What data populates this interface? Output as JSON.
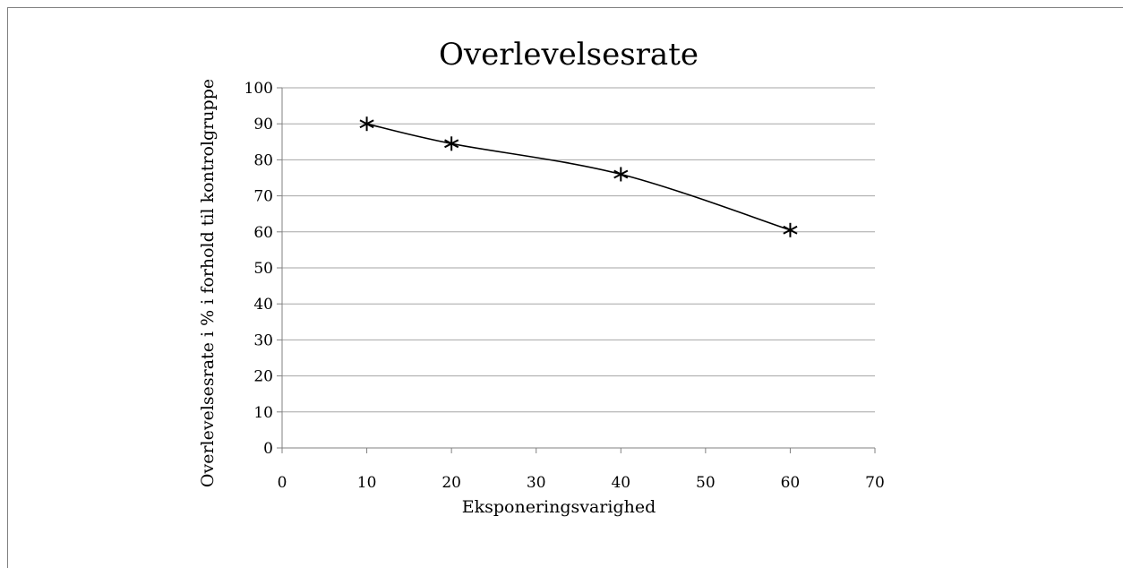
{
  "chart_data": {
    "type": "line",
    "title": "Overlevelsesrate",
    "xlabel": "Eksponeringsvarighed",
    "ylabel": "Overlevelsesrate i % i forhold til kontrolgruppe",
    "xlim": [
      0,
      70
    ],
    "ylim": [
      0,
      100
    ],
    "xticks": [
      "0",
      "10",
      "20",
      "30",
      "40",
      "50",
      "60",
      "70"
    ],
    "yticks": [
      "0",
      "10",
      "20",
      "30",
      "40",
      "50",
      "60",
      "70",
      "80",
      "90",
      "100"
    ],
    "grid": "horizontal",
    "legend": "none",
    "series": [
      {
        "x": [
          10,
          20,
          40,
          60
        ],
        "y": [
          90,
          84.5,
          76,
          60.5
        ],
        "marker": "asterisk",
        "smooth": true,
        "color": "#000000"
      }
    ]
  }
}
